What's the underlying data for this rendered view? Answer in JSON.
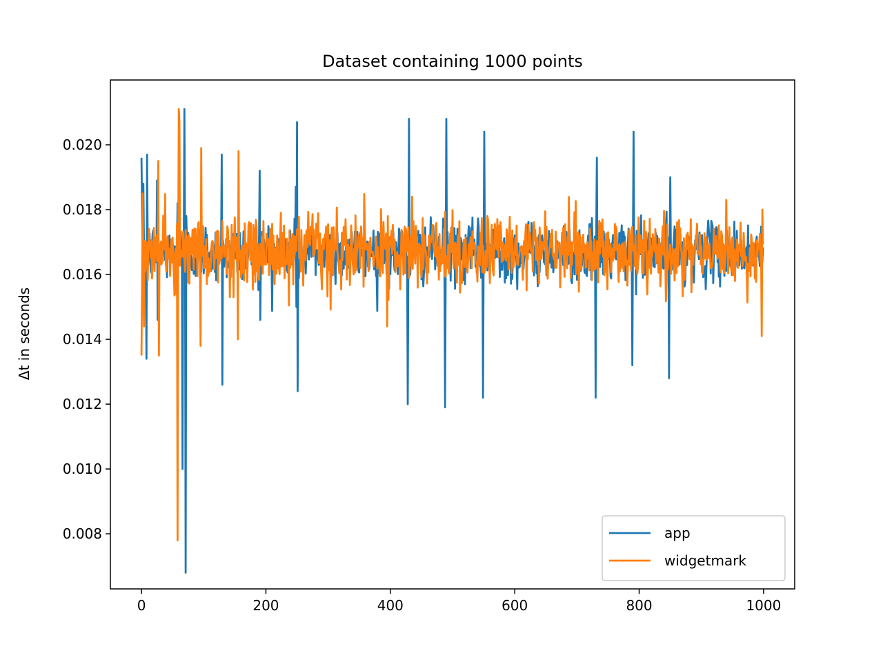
{
  "chart_data": {
    "type": "line",
    "title": "Dataset containing 1000 points",
    "xlabel": "",
    "ylabel": "Δt in seconds",
    "xlim": [
      -50,
      1050
    ],
    "ylim": [
      0.0063,
      0.022
    ],
    "xticks": [
      0,
      200,
      400,
      600,
      800,
      1000
    ],
    "yticks": [
      0.008,
      0.01,
      0.012,
      0.014,
      0.016,
      0.018,
      0.02
    ],
    "ytick_labels": [
      "0.008",
      "0.010",
      "0.012",
      "0.014",
      "0.016",
      "0.018",
      "0.020"
    ],
    "grid": false,
    "legend_position": "lower-right",
    "x_range": [
      0,
      999
    ],
    "series": [
      {
        "name": "app",
        "color": "#1f77b4",
        "baseline": 0.01668,
        "noise": 0.00045,
        "spikes": [
          {
            "x": 0,
            "y": 0.0196
          },
          {
            "x": 3,
            "y": 0.0188
          },
          {
            "x": 8,
            "y": 0.0134
          },
          {
            "x": 9,
            "y": 0.0197
          },
          {
            "x": 25,
            "y": 0.0189
          },
          {
            "x": 26,
            "y": 0.0146
          },
          {
            "x": 45,
            "y": 0.0172
          },
          {
            "x": 58,
            "y": 0.0182
          },
          {
            "x": 66,
            "y": 0.01
          },
          {
            "x": 69,
            "y": 0.0211
          },
          {
            "x": 71,
            "y": 0.0068
          },
          {
            "x": 72,
            "y": 0.0178
          },
          {
            "x": 129,
            "y": 0.0197
          },
          {
            "x": 130,
            "y": 0.0126
          },
          {
            "x": 190,
            "y": 0.0192
          },
          {
            "x": 191,
            "y": 0.0146
          },
          {
            "x": 248,
            "y": 0.0187
          },
          {
            "x": 249,
            "y": 0.015
          },
          {
            "x": 250,
            "y": 0.0207
          },
          {
            "x": 251,
            "y": 0.0124
          },
          {
            "x": 428,
            "y": 0.012
          },
          {
            "x": 430,
            "y": 0.0208
          },
          {
            "x": 488,
            "y": 0.0119
          },
          {
            "x": 490,
            "y": 0.0208
          },
          {
            "x": 549,
            "y": 0.0122
          },
          {
            "x": 551,
            "y": 0.0204
          },
          {
            "x": 730,
            "y": 0.0122
          },
          {
            "x": 732,
            "y": 0.0196
          },
          {
            "x": 789,
            "y": 0.0132
          },
          {
            "x": 791,
            "y": 0.0204
          },
          {
            "x": 848,
            "y": 0.0128
          },
          {
            "x": 850,
            "y": 0.019
          }
        ]
      },
      {
        "name": "widgetmark",
        "color": "#ff7f0e",
        "baseline": 0.01668,
        "noise": 0.00055,
        "spikes": [
          {
            "x": 0,
            "y": 0.0135
          },
          {
            "x": 2,
            "y": 0.0185
          },
          {
            "x": 4,
            "y": 0.0144
          },
          {
            "x": 27,
            "y": 0.0195
          },
          {
            "x": 28,
            "y": 0.0135
          },
          {
            "x": 58,
            "y": 0.0078
          },
          {
            "x": 60,
            "y": 0.0211
          },
          {
            "x": 61,
            "y": 0.0207
          },
          {
            "x": 95,
            "y": 0.0138
          },
          {
            "x": 96,
            "y": 0.0199
          },
          {
            "x": 155,
            "y": 0.014
          },
          {
            "x": 156,
            "y": 0.0198
          },
          {
            "x": 395,
            "y": 0.0144
          },
          {
            "x": 396,
            "y": 0.0178
          },
          {
            "x": 940,
            "y": 0.0183
          },
          {
            "x": 997,
            "y": 0.0141
          },
          {
            "x": 998,
            "y": 0.018
          }
        ]
      }
    ]
  }
}
